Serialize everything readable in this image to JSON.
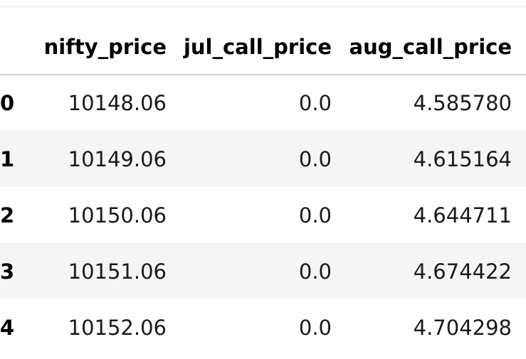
{
  "table": {
    "columns": [
      "nifty_price",
      "jul_call_price",
      "aug_call_price"
    ],
    "rows": [
      {
        "index": "0",
        "cells": [
          "10148.06",
          "0.0",
          "4.585780"
        ]
      },
      {
        "index": "1",
        "cells": [
          "10149.06",
          "0.0",
          "4.615164"
        ]
      },
      {
        "index": "2",
        "cells": [
          "10150.06",
          "0.0",
          "4.644711"
        ]
      },
      {
        "index": "3",
        "cells": [
          "10151.06",
          "0.0",
          "4.674422"
        ]
      },
      {
        "index": "4",
        "cells": [
          "10152.06",
          "0.0",
          "4.704298"
        ]
      }
    ]
  }
}
